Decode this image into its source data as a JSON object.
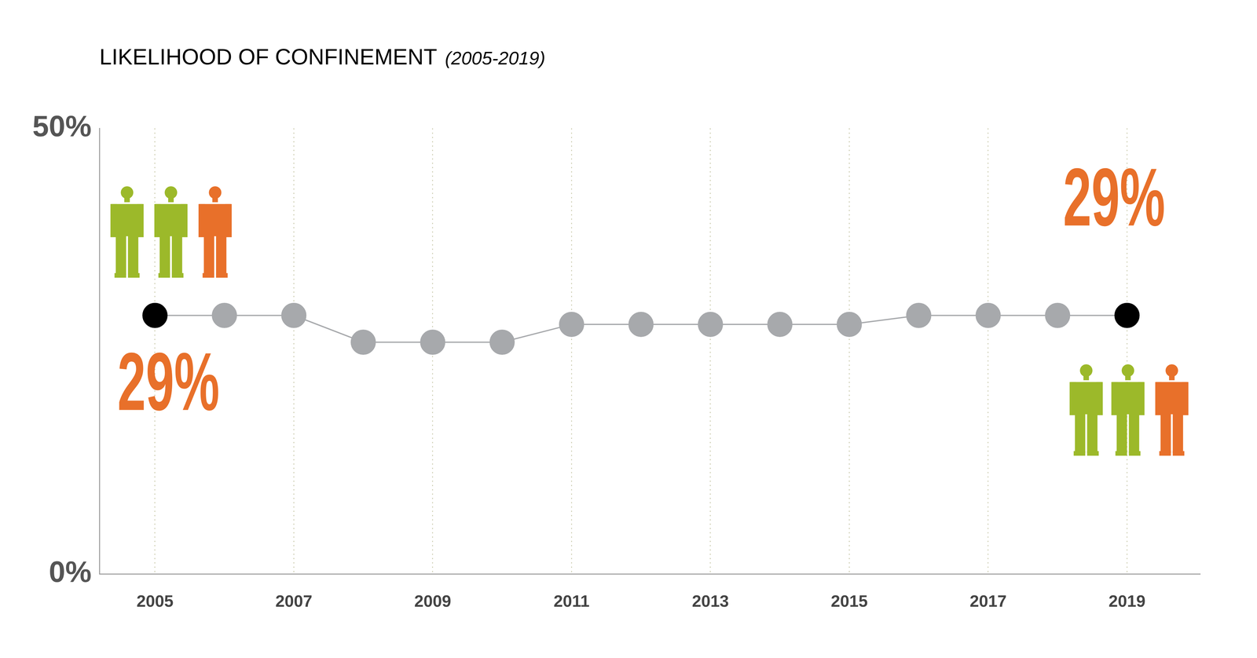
{
  "chart_data": {
    "type": "line",
    "title": "LIKELIHOOD OF CONFINEMENT",
    "subtitle": "(2005-2019)",
    "categories": [
      "2005",
      null,
      "2007",
      null,
      "2009",
      null,
      "2011",
      null,
      "2013",
      null,
      "2015",
      null,
      "2017",
      null,
      "2019"
    ],
    "values": [
      29,
      29,
      29,
      26,
      26,
      26,
      28,
      28,
      28,
      28,
      28,
      29,
      29,
      29,
      29
    ],
    "value_labels": [
      "29%",
      null,
      null,
      null,
      null,
      null,
      null,
      null,
      null,
      null,
      null,
      null,
      null,
      null,
      "29%"
    ],
    "color": "#a7a9ac",
    "colors": [
      "#000000",
      "#a7a9ac",
      "#a7a9ac",
      "#a7a9ac",
      "#a7a9ac",
      "#a7a9ac",
      "#a7a9ac",
      "#a7a9ac",
      "#a7a9ac",
      "#a7a9ac",
      "#a7a9ac",
      "#a7a9ac",
      "#a7a9ac",
      "#a7a9ac",
      "#000000"
    ],
    "ylim": [
      0,
      50
    ],
    "yticks": [
      {
        "value": 0,
        "label": "0%"
      },
      {
        "value": 50,
        "label": "50%"
      }
    ],
    "grid": true
  }
}
